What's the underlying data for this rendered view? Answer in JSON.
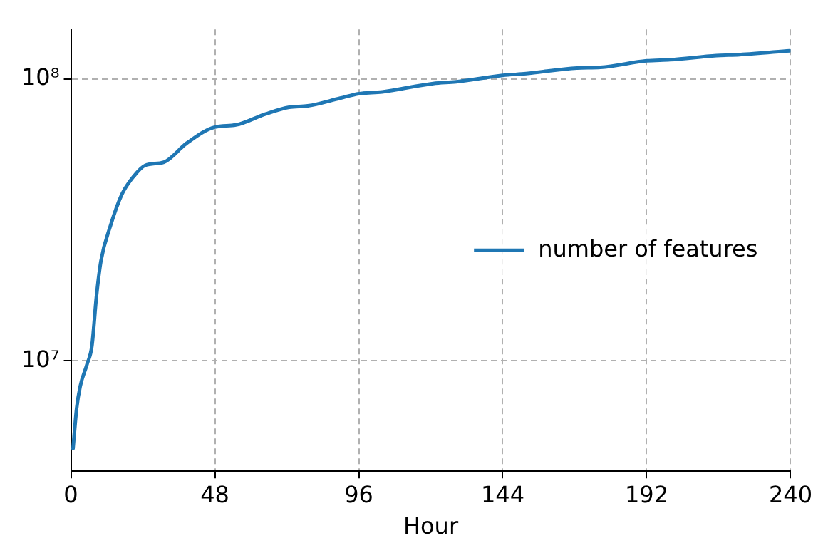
{
  "chart_data": {
    "type": "line",
    "xlabel": "Hour",
    "xlim": [
      0,
      240
    ],
    "xticks": [
      0,
      48,
      96,
      144,
      192,
      240
    ],
    "ylim": [
      4060000,
      150000000
    ],
    "yticks": [
      {
        "value": 10000000,
        "label": "10⁷"
      },
      {
        "value": 100000000,
        "label": "10⁸"
      }
    ],
    "log": "y",
    "grid": true,
    "legend": "center right",
    "marker": "none",
    "line_style": "solid",
    "series": [
      {
        "name": "number of features",
        "color": "#1f77b4",
        "x": [
          0.7,
          1.9,
          3.1,
          5.4,
          7.0,
          8.5,
          10.0,
          13.2,
          17.0,
          20.9,
          24.8,
          31.0,
          38.7,
          48.0,
          55.0,
          65.0,
          72.8,
          79.0,
          89.8,
          96.0,
          103.8,
          120.8,
          128.5,
          144.0,
          151.8,
          168.8,
          176.6,
          192.0,
          199.8,
          215.3,
          223.0,
          239.8
        ],
        "values": [
          4880000,
          6780000,
          8130000,
          9750000,
          11300000,
          16900000,
          22600000,
          30200000,
          39000000,
          45100000,
          49400000,
          50700000,
          59300000,
          67500000,
          68700000,
          75200000,
          79400000,
          80300000,
          85500000,
          88700000,
          90000000,
          96400000,
          97800000,
          103000000,
          104500000,
          109400000,
          110000000,
          116000000,
          117000000,
          121000000,
          122000000,
          126000000
        ]
      }
    ]
  }
}
